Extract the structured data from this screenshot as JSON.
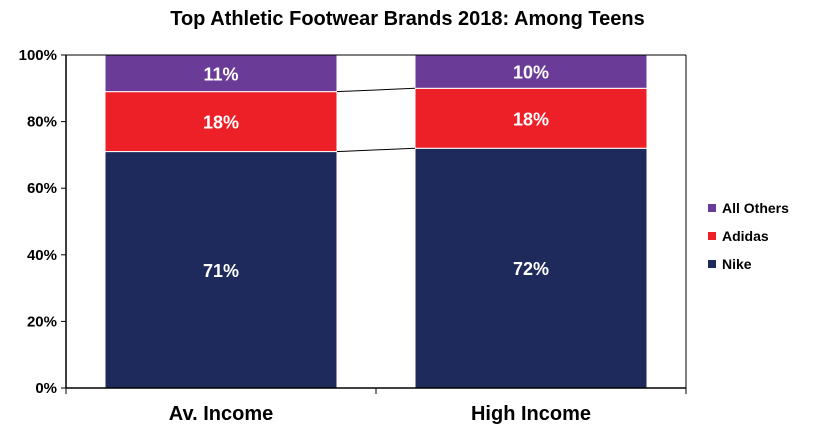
{
  "chart_data": {
    "type": "bar",
    "stacked": true,
    "title": "Top Athletic Footwear Brands 2018: Among Teens",
    "categories": [
      "Av. Income",
      "High Income"
    ],
    "series": [
      {
        "name": "Nike",
        "values": [
          71,
          72
        ],
        "labels": [
          "71%",
          "72%"
        ],
        "color": "#1f2a5c"
      },
      {
        "name": "Adidas",
        "values": [
          18,
          18
        ],
        "labels": [
          "18%",
          "18%"
        ],
        "color": "#ee2027"
      },
      {
        "name": "All Others",
        "values": [
          11,
          10
        ],
        "labels": [
          "11%",
          "10%"
        ],
        "color": "#6b3c97"
      }
    ],
    "y_ticks": [
      "0%",
      "20%",
      "40%",
      "60%",
      "80%",
      "100%"
    ],
    "ylim": [
      0,
      100
    ],
    "grid": false,
    "legend_position": "right",
    "series_lines": true
  }
}
